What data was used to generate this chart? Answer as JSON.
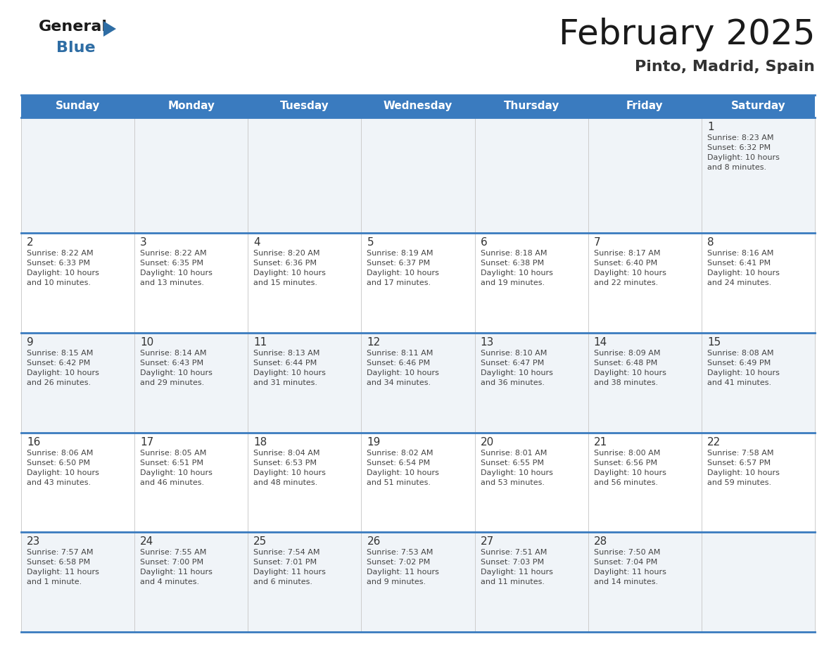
{
  "title": "February 2025",
  "subtitle": "Pinto, Madrid, Spain",
  "header_bg": "#3a7bbf",
  "header_text_color": "#ffffff",
  "day_names": [
    "Sunday",
    "Monday",
    "Tuesday",
    "Wednesday",
    "Thursday",
    "Friday",
    "Saturday"
  ],
  "cell_bg_row0": "#f0f4f8",
  "cell_bg_odd": "#f0f4f8",
  "cell_bg_even": "#ffffff",
  "separator_color": "#3a7bbf",
  "date_color": "#333333",
  "info_color": "#444444",
  "background_color": "#ffffff",
  "calendar_data": [
    {
      "day": 1,
      "col": 6,
      "row": 0,
      "sunrise": "8:23 AM",
      "sunset": "6:32 PM",
      "daylight": "10 hours and 8 minutes."
    },
    {
      "day": 2,
      "col": 0,
      "row": 1,
      "sunrise": "8:22 AM",
      "sunset": "6:33 PM",
      "daylight": "10 hours and 10 minutes."
    },
    {
      "day": 3,
      "col": 1,
      "row": 1,
      "sunrise": "8:22 AM",
      "sunset": "6:35 PM",
      "daylight": "10 hours and 13 minutes."
    },
    {
      "day": 4,
      "col": 2,
      "row": 1,
      "sunrise": "8:20 AM",
      "sunset": "6:36 PM",
      "daylight": "10 hours and 15 minutes."
    },
    {
      "day": 5,
      "col": 3,
      "row": 1,
      "sunrise": "8:19 AM",
      "sunset": "6:37 PM",
      "daylight": "10 hours and 17 minutes."
    },
    {
      "day": 6,
      "col": 4,
      "row": 1,
      "sunrise": "8:18 AM",
      "sunset": "6:38 PM",
      "daylight": "10 hours and 19 minutes."
    },
    {
      "day": 7,
      "col": 5,
      "row": 1,
      "sunrise": "8:17 AM",
      "sunset": "6:40 PM",
      "daylight": "10 hours and 22 minutes."
    },
    {
      "day": 8,
      "col": 6,
      "row": 1,
      "sunrise": "8:16 AM",
      "sunset": "6:41 PM",
      "daylight": "10 hours and 24 minutes."
    },
    {
      "day": 9,
      "col": 0,
      "row": 2,
      "sunrise": "8:15 AM",
      "sunset": "6:42 PM",
      "daylight": "10 hours and 26 minutes."
    },
    {
      "day": 10,
      "col": 1,
      "row": 2,
      "sunrise": "8:14 AM",
      "sunset": "6:43 PM",
      "daylight": "10 hours and 29 minutes."
    },
    {
      "day": 11,
      "col": 2,
      "row": 2,
      "sunrise": "8:13 AM",
      "sunset": "6:44 PM",
      "daylight": "10 hours and 31 minutes."
    },
    {
      "day": 12,
      "col": 3,
      "row": 2,
      "sunrise": "8:11 AM",
      "sunset": "6:46 PM",
      "daylight": "10 hours and 34 minutes."
    },
    {
      "day": 13,
      "col": 4,
      "row": 2,
      "sunrise": "8:10 AM",
      "sunset": "6:47 PM",
      "daylight": "10 hours and 36 minutes."
    },
    {
      "day": 14,
      "col": 5,
      "row": 2,
      "sunrise": "8:09 AM",
      "sunset": "6:48 PM",
      "daylight": "10 hours and 38 minutes."
    },
    {
      "day": 15,
      "col": 6,
      "row": 2,
      "sunrise": "8:08 AM",
      "sunset": "6:49 PM",
      "daylight": "10 hours and 41 minutes."
    },
    {
      "day": 16,
      "col": 0,
      "row": 3,
      "sunrise": "8:06 AM",
      "sunset": "6:50 PM",
      "daylight": "10 hours and 43 minutes."
    },
    {
      "day": 17,
      "col": 1,
      "row": 3,
      "sunrise": "8:05 AM",
      "sunset": "6:51 PM",
      "daylight": "10 hours and 46 minutes."
    },
    {
      "day": 18,
      "col": 2,
      "row": 3,
      "sunrise": "8:04 AM",
      "sunset": "6:53 PM",
      "daylight": "10 hours and 48 minutes."
    },
    {
      "day": 19,
      "col": 3,
      "row": 3,
      "sunrise": "8:02 AM",
      "sunset": "6:54 PM",
      "daylight": "10 hours and 51 minutes."
    },
    {
      "day": 20,
      "col": 4,
      "row": 3,
      "sunrise": "8:01 AM",
      "sunset": "6:55 PM",
      "daylight": "10 hours and 53 minutes."
    },
    {
      "day": 21,
      "col": 5,
      "row": 3,
      "sunrise": "8:00 AM",
      "sunset": "6:56 PM",
      "daylight": "10 hours and 56 minutes."
    },
    {
      "day": 22,
      "col": 6,
      "row": 3,
      "sunrise": "7:58 AM",
      "sunset": "6:57 PM",
      "daylight": "10 hours and 59 minutes."
    },
    {
      "day": 23,
      "col": 0,
      "row": 4,
      "sunrise": "7:57 AM",
      "sunset": "6:58 PM",
      "daylight": "11 hours and 1 minute."
    },
    {
      "day": 24,
      "col": 1,
      "row": 4,
      "sunrise": "7:55 AM",
      "sunset": "7:00 PM",
      "daylight": "11 hours and 4 minutes."
    },
    {
      "day": 25,
      "col": 2,
      "row": 4,
      "sunrise": "7:54 AM",
      "sunset": "7:01 PM",
      "daylight": "11 hours and 6 minutes."
    },
    {
      "day": 26,
      "col": 3,
      "row": 4,
      "sunrise": "7:53 AM",
      "sunset": "7:02 PM",
      "daylight": "11 hours and 9 minutes."
    },
    {
      "day": 27,
      "col": 4,
      "row": 4,
      "sunrise": "7:51 AM",
      "sunset": "7:03 PM",
      "daylight": "11 hours and 11 minutes."
    },
    {
      "day": 28,
      "col": 5,
      "row": 4,
      "sunrise": "7:50 AM",
      "sunset": "7:04 PM",
      "daylight": "11 hours and 14 minutes."
    }
  ],
  "num_rows": 5,
  "num_cols": 7,
  "logo_text_general": "General",
  "logo_text_blue": "Blue",
  "logo_triangle_color": "#2e6da4"
}
